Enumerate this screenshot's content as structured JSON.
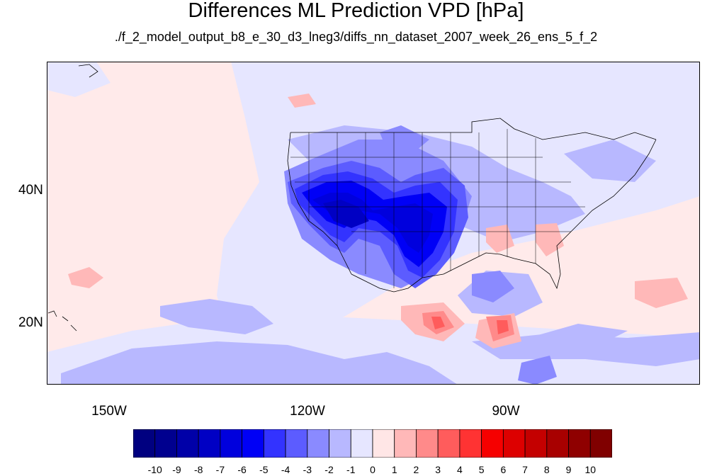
{
  "title": "Differences ML Prediction VPD [hPa]",
  "subtitle": "./f_2_model_output_b8_e_30_d3_lneg3/diffs_nn_dataset_2007_week_26_ens_5_f_2",
  "axes": {
    "lat_labels": [
      "40N",
      "20N"
    ],
    "lon_labels": [
      "150W",
      "120W",
      "90W"
    ]
  },
  "colorbar": {
    "labels": [
      "-10",
      "-9",
      "-8",
      "-7",
      "-6",
      "-5",
      "-4",
      "-3",
      "-2",
      "-1",
      "0",
      "1",
      "2",
      "3",
      "4",
      "5",
      "6",
      "7",
      "8",
      "9",
      "10"
    ],
    "colors": [
      "#000080",
      "#00008f",
      "#0000a8",
      "#0000c4",
      "#0000dd",
      "#0000f6",
      "#3333ff",
      "#5c5cff",
      "#8a8aff",
      "#b8b8ff",
      "#e6e6ff",
      "#ffe6e6",
      "#ffb8b8",
      "#ff8a8a",
      "#ff5c5c",
      "#ff3333",
      "#f60000",
      "#dd0000",
      "#c40000",
      "#a80000",
      "#8f0000",
      "#800000"
    ]
  },
  "map": {
    "background": "#ffeaea"
  }
}
